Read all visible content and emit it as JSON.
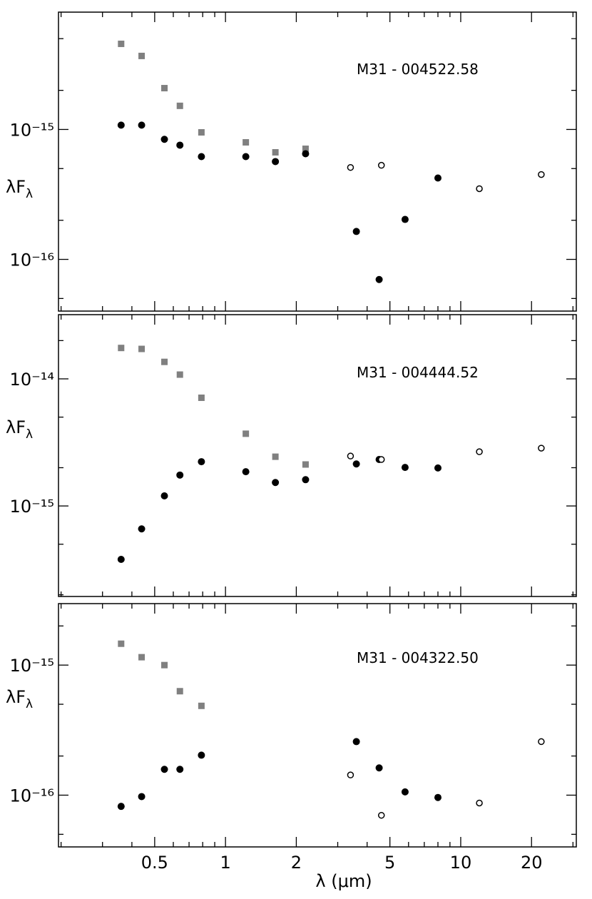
{
  "chart_data": [
    {
      "type": "scatter",
      "annotation": "M31 - 004522.58",
      "ylabel": {
        "text": "λF",
        "subscript": "λ"
      },
      "log_x": true,
      "log_y": true,
      "xlim": [
        0.195,
        31
      ],
      "ylim": [
        4e-17,
        8e-15
      ],
      "xticks": [
        0.5,
        1,
        2,
        5,
        10,
        20
      ],
      "xticks_minor": [
        0.2,
        0.3,
        0.4,
        0.6,
        0.7,
        0.8,
        0.9,
        3,
        4,
        6,
        7,
        8,
        9,
        30
      ],
      "show_xtick_labels": false,
      "yticks": [
        {
          "value": 1e-15,
          "label": "10⁻¹⁵"
        },
        {
          "value": 1e-16,
          "label": "10⁻¹⁶"
        }
      ],
      "yticks_minor": [
        5e-17,
        2e-16,
        5e-16,
        2e-15,
        5e-15
      ],
      "series": [
        {
          "marker": "square",
          "color": "#808080",
          "x": [
            0.36,
            0.44,
            0.55,
            0.64,
            0.79,
            1.22,
            1.63,
            2.19
          ],
          "values": [
            4.56e-15,
            3.68e-15,
            2.08e-15,
            1.52e-15,
            9.5e-16,
            7.96e-16,
            6.67e-16,
            7.1e-16
          ]
        },
        {
          "marker": "circle",
          "color": "#000000",
          "x": [
            0.36,
            0.44,
            0.55,
            0.64,
            0.79,
            1.22,
            1.63,
            2.19,
            3.6,
            4.5,
            5.8,
            8.0
          ],
          "values": [
            1.08e-15,
            1.08e-15,
            8.4e-16,
            7.57e-16,
            6.18e-16,
            6.18e-16,
            5.66e-16,
            6.5e-16,
            1.64e-16,
            7e-17,
            2.03e-16,
            4.23e-16
          ]
        },
        {
          "marker": "open-circle",
          "color": "#000000",
          "x": [
            3.4,
            4.6,
            12,
            22
          ],
          "values": [
            5.1e-16,
            5.3e-16,
            3.5e-16,
            4.5e-16
          ]
        }
      ]
    },
    {
      "type": "scatter",
      "annotation": "M31 - 004444.52",
      "ylabel": {
        "text": "λF",
        "subscript": "λ"
      },
      "log_x": true,
      "log_y": true,
      "xlim": [
        0.195,
        31
      ],
      "ylim": [
        1.94e-16,
        3.2e-14
      ],
      "xticks": [
        0.5,
        1,
        2,
        5,
        10,
        20
      ],
      "xticks_minor": [
        0.2,
        0.3,
        0.4,
        0.6,
        0.7,
        0.8,
        0.9,
        3,
        4,
        6,
        7,
        8,
        9,
        30
      ],
      "show_xtick_labels": false,
      "yticks": [
        {
          "value": 1e-14,
          "label": "10⁻¹⁴"
        },
        {
          "value": 1e-15,
          "label": "10⁻¹⁵"
        }
      ],
      "yticks_minor": [
        2e-16,
        5e-16,
        2e-15,
        5e-15,
        2e-14
      ],
      "series": [
        {
          "marker": "square",
          "color": "#808080",
          "x": [
            0.36,
            0.44,
            0.55,
            0.64,
            0.79,
            1.22,
            1.63,
            2.19
          ],
          "values": [
            1.75e-14,
            1.72e-14,
            1.36e-14,
            1.08e-14,
            7.1e-15,
            3.7e-15,
            2.44e-15,
            2.12e-15
          ]
        },
        {
          "marker": "circle",
          "color": "#000000",
          "x": [
            0.36,
            0.44,
            0.55,
            0.64,
            0.79,
            1.22,
            1.63,
            2.19,
            3.6,
            4.5,
            5.8,
            8.0
          ],
          "values": [
            3.8e-16,
            6.6e-16,
            1.2e-15,
            1.75e-15,
            2.23e-15,
            1.86e-15,
            1.53e-15,
            1.61e-15,
            2.14e-15,
            2.32e-15,
            2.01e-15,
            1.99e-15
          ]
        },
        {
          "marker": "open-circle",
          "color": "#000000",
          "x": [
            3.4,
            4.6,
            12,
            22
          ],
          "values": [
            2.47e-15,
            2.32e-15,
            2.67e-15,
            2.85e-15
          ]
        }
      ]
    },
    {
      "type": "scatter",
      "annotation": "M31 - 004322.50",
      "ylabel": {
        "text": "λF",
        "subscript": "λ"
      },
      "xlabel": "λ (μm)",
      "log_x": true,
      "log_y": true,
      "xlim": [
        0.195,
        31
      ],
      "ylim": [
        4e-17,
        2.97e-15
      ],
      "xticks": [
        0.5,
        1,
        2,
        5,
        10,
        20
      ],
      "xticks_minor": [
        0.2,
        0.3,
        0.4,
        0.6,
        0.7,
        0.8,
        0.9,
        3,
        4,
        6,
        7,
        8,
        9,
        30
      ],
      "show_xtick_labels": true,
      "yticks": [
        {
          "value": 1e-15,
          "label": "10⁻¹⁵"
        },
        {
          "value": 1e-16,
          "label": "10⁻¹⁶"
        }
      ],
      "yticks_minor": [
        5e-17,
        2e-16,
        5e-16,
        2e-15
      ],
      "series": [
        {
          "marker": "square",
          "color": "#808080",
          "x": [
            0.36,
            0.44,
            0.55,
            0.64,
            0.79
          ],
          "values": [
            1.46e-15,
            1.15e-15,
            1e-15,
            6.3e-16,
            4.86e-16
          ]
        },
        {
          "marker": "circle",
          "color": "#000000",
          "x": [
            0.36,
            0.44,
            0.55,
            0.64,
            0.79,
            3.6,
            4.5,
            5.8,
            8.0
          ],
          "values": [
            8.2e-17,
            9.75e-17,
            1.58e-16,
            1.58e-16,
            2.03e-16,
            2.58e-16,
            1.62e-16,
            1.06e-16,
            9.6e-17
          ]
        },
        {
          "marker": "open-circle",
          "color": "#000000",
          "x": [
            3.4,
            4.6,
            12,
            22
          ],
          "values": [
            1.43e-16,
            7e-17,
            8.7e-17,
            2.58e-16
          ]
        }
      ]
    }
  ]
}
